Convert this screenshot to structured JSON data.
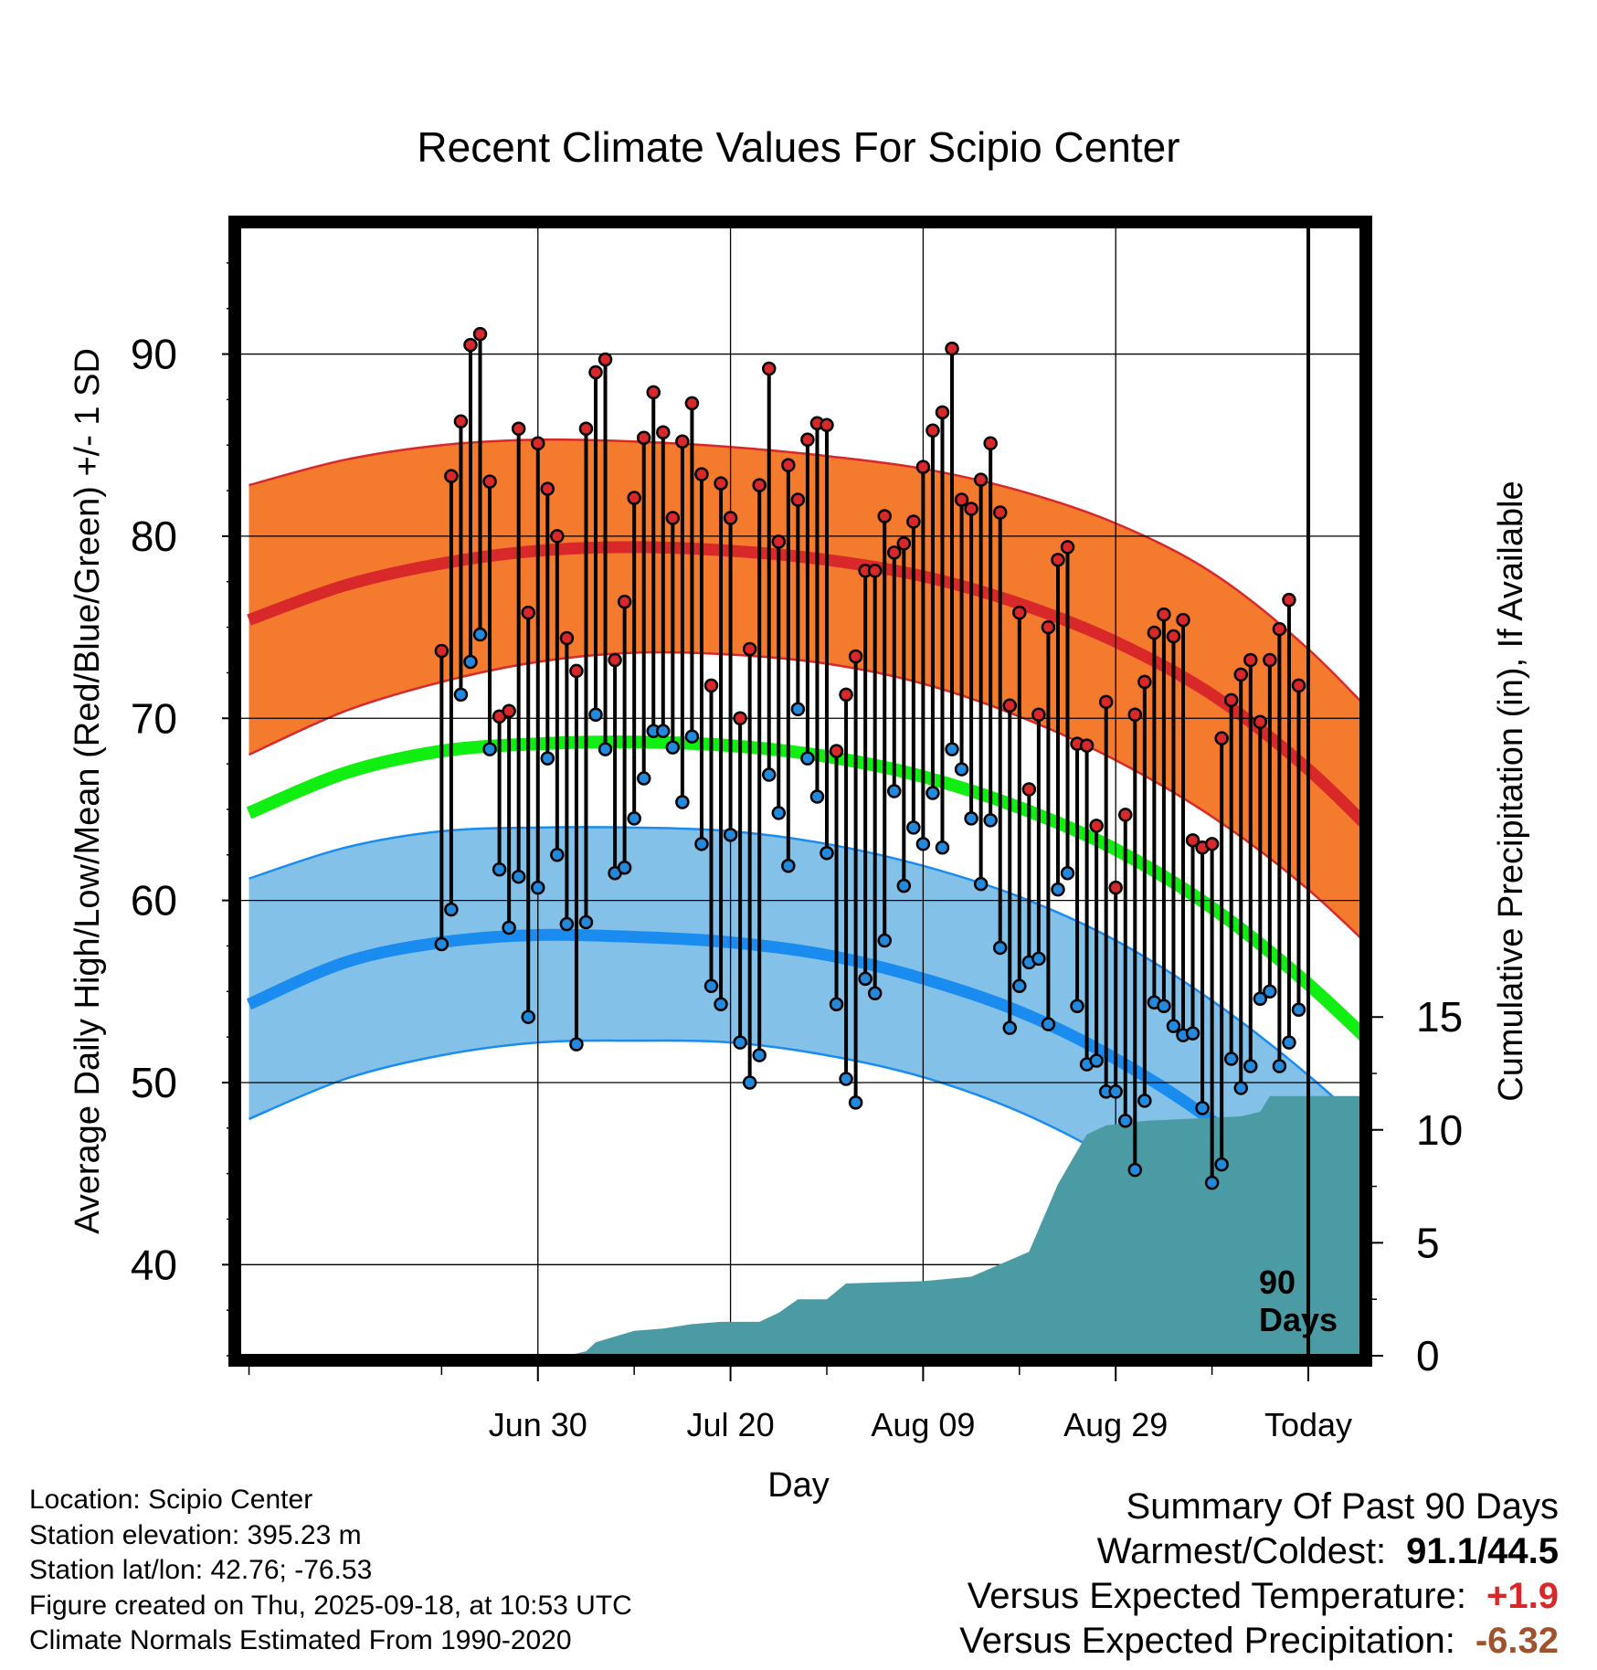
{
  "chart_data": {
    "type": "line",
    "title": "Recent Climate Values For Scipio Center",
    "xlabel": "Day",
    "ylabel": "Average Daily High/Low/Mean (Red/Blue/Green) +/- 1 SD",
    "y2label": "Cumulative Precipitation (in), If Available",
    "ylim": [
      35,
      97
    ],
    "y2lim": [
      0,
      50
    ],
    "xlim": [
      -111,
      5.5
    ],
    "yticks": [
      40,
      50,
      60,
      70,
      80,
      90
    ],
    "y2ticks": [
      0,
      5,
      10,
      15
    ],
    "xticks": [
      {
        "day": -80,
        "label": "Jun 30"
      },
      {
        "day": -60,
        "label": "Jul 20"
      },
      {
        "day": -40,
        "label": "Aug 09"
      },
      {
        "day": -20,
        "label": "Aug 29"
      },
      {
        "day": 0,
        "label": "Today"
      }
    ],
    "period_label_1": "90",
    "period_label_2": "Days",
    "normals": {
      "days": [
        -110,
        -100,
        -90,
        -80,
        -70,
        -60,
        -50,
        -40,
        -30,
        -20,
        -10,
        0,
        10
      ],
      "high_mean": [
        75.4,
        77.3,
        78.5,
        79.2,
        79.4,
        79.2,
        78.7,
        77.8,
        76.3,
        74.2,
        71.3,
        67.2,
        62.0
      ],
      "high_upper": [
        82.8,
        84.2,
        85.0,
        85.3,
        85.2,
        84.9,
        84.4,
        83.7,
        82.5,
        80.7,
        78.0,
        73.8,
        68.4
      ],
      "high_lower": [
        68.0,
        70.4,
        72.0,
        73.1,
        73.6,
        73.5,
        73.0,
        71.9,
        70.1,
        67.7,
        64.6,
        60.6,
        55.6
      ],
      "low_mean": [
        54.3,
        56.6,
        57.7,
        58.1,
        58.0,
        57.7,
        57.0,
        55.7,
        53.9,
        51.3,
        47.9,
        43.6,
        38.8
      ],
      "low_upper": [
        61.2,
        62.9,
        63.8,
        64.0,
        64.0,
        63.8,
        63.1,
        61.9,
        60.2,
        57.8,
        54.5,
        50.4,
        45.6
      ],
      "low_lower": [
        48.0,
        50.2,
        51.5,
        52.2,
        52.3,
        52.2,
        51.5,
        50.3,
        48.4,
        45.7,
        42.2,
        38.0,
        33.0
      ],
      "avg_mean": [
        64.8,
        67.0,
        68.2,
        68.6,
        68.7,
        68.5,
        67.9,
        66.8,
        65.1,
        62.8,
        59.6,
        55.4,
        50.4
      ]
    },
    "series": [
      {
        "name": "Daily High",
        "color": "#d8282a",
        "values": [
          73.7,
          83.3,
          86.3,
          90.5,
          91.1,
          83.0,
          70.1,
          70.4,
          85.9,
          75.8,
          85.1,
          82.6,
          80.0,
          74.4,
          72.6,
          85.9,
          89.0,
          89.7,
          73.2,
          76.4,
          82.1,
          85.4,
          87.9,
          85.7,
          81.0,
          85.2,
          87.3,
          83.4,
          71.8,
          82.9,
          81.0,
          70.0,
          73.8,
          82.8,
          89.2,
          79.7,
          83.9,
          82.0,
          85.3,
          86.2,
          86.1,
          68.2,
          71.3,
          73.4,
          78.1,
          78.1,
          81.1,
          79.1,
          79.6,
          80.8,
          83.8,
          85.8,
          86.8,
          90.3,
          82.0,
          81.5,
          83.1,
          85.1,
          81.3,
          70.7,
          75.8,
          66.1,
          70.2,
          75.0,
          78.7,
          79.4,
          68.6,
          68.5,
          64.1,
          70.9,
          60.7,
          64.7,
          70.2,
          72.0,
          74.7,
          75.7,
          74.5,
          75.4,
          63.3,
          62.9,
          63.1,
          68.9,
          71.0,
          72.4,
          73.2,
          69.8,
          73.2,
          74.9,
          76.5,
          71.8
        ]
      },
      {
        "name": "Daily Low",
        "color": "#2389dd",
        "values": [
          57.6,
          59.5,
          71.3,
          73.1,
          74.6,
          68.3,
          61.7,
          58.5,
          61.3,
          53.6,
          60.7,
          67.8,
          62.5,
          58.7,
          52.1,
          58.8,
          70.2,
          68.3,
          61.5,
          61.8,
          64.5,
          66.7,
          69.3,
          69.3,
          68.4,
          65.4,
          69.0,
          63.1,
          55.3,
          54.3,
          63.6,
          52.2,
          50.0,
          51.5,
          66.9,
          64.8,
          61.9,
          70.5,
          67.8,
          65.7,
          62.6,
          54.3,
          50.2,
          48.9,
          55.7,
          54.9,
          57.8,
          66.0,
          60.8,
          64.0,
          63.1,
          65.9,
          62.9,
          68.3,
          67.2,
          64.5,
          60.9,
          64.4,
          57.4,
          53.0,
          55.3,
          56.6,
          56.8,
          53.2,
          60.6,
          61.5,
          54.2,
          51.0,
          51.2,
          49.5,
          49.5,
          47.9,
          45.2,
          49.0,
          54.4,
          54.2,
          53.1,
          52.6,
          52.7,
          48.6,
          44.5,
          45.5,
          51.3,
          49.7,
          50.9,
          54.6,
          55.0,
          50.9,
          52.2,
          54.0
        ]
      }
    ],
    "precipitation": {
      "name": "Cumulative Precipitation (in)",
      "color": "#4a9ba4",
      "days": [
        -89,
        -77,
        -75,
        -74,
        -70,
        -67,
        -64,
        -61,
        -57,
        -55,
        -53,
        -50,
        -48,
        -40,
        -35,
        -29,
        -26,
        -23,
        -21,
        -17,
        -7,
        -5,
        -4,
        5.5
      ],
      "values": [
        0,
        0,
        0.2,
        0.6,
        1.1,
        1.2,
        1.4,
        1.5,
        1.5,
        1.9,
        2.5,
        2.5,
        3.2,
        3.3,
        3.5,
        4.6,
        7.6,
        9.8,
        10.2,
        10.4,
        10.6,
        10.8,
        11.5,
        11.5
      ]
    }
  },
  "metadata_panel": {
    "location": "Location: Scipio Center",
    "elevation": "Station elevation: 395.23 m",
    "latlon": "Station lat/lon: 42.76; -76.53",
    "created": "Figure created on Thu, 2025-09-18, at 10:53 UTC",
    "normals_period": "Climate Normals Estimated From 1990-2020"
  },
  "summary": {
    "title": "Summary Of Past 90 Days",
    "warmest_coldest_label": "Warmest/Coldest:",
    "warmest_coldest_value": "91.1/44.5",
    "temp_label": "Versus Expected Temperature:",
    "temp_value": "+1.9",
    "temp_color": "#d8282a",
    "precip_label": "Versus Expected Precipitation:",
    "precip_value": "-6.32",
    "precip_color": "#a0522d"
  },
  "colors": {
    "high_band": "#f47b2e",
    "high_line": "#d8282a",
    "low_band": "#84c1e8",
    "low_line": "#1a8cf0",
    "mean_line": "#11ee11",
    "precip": "#4a9ba4"
  }
}
